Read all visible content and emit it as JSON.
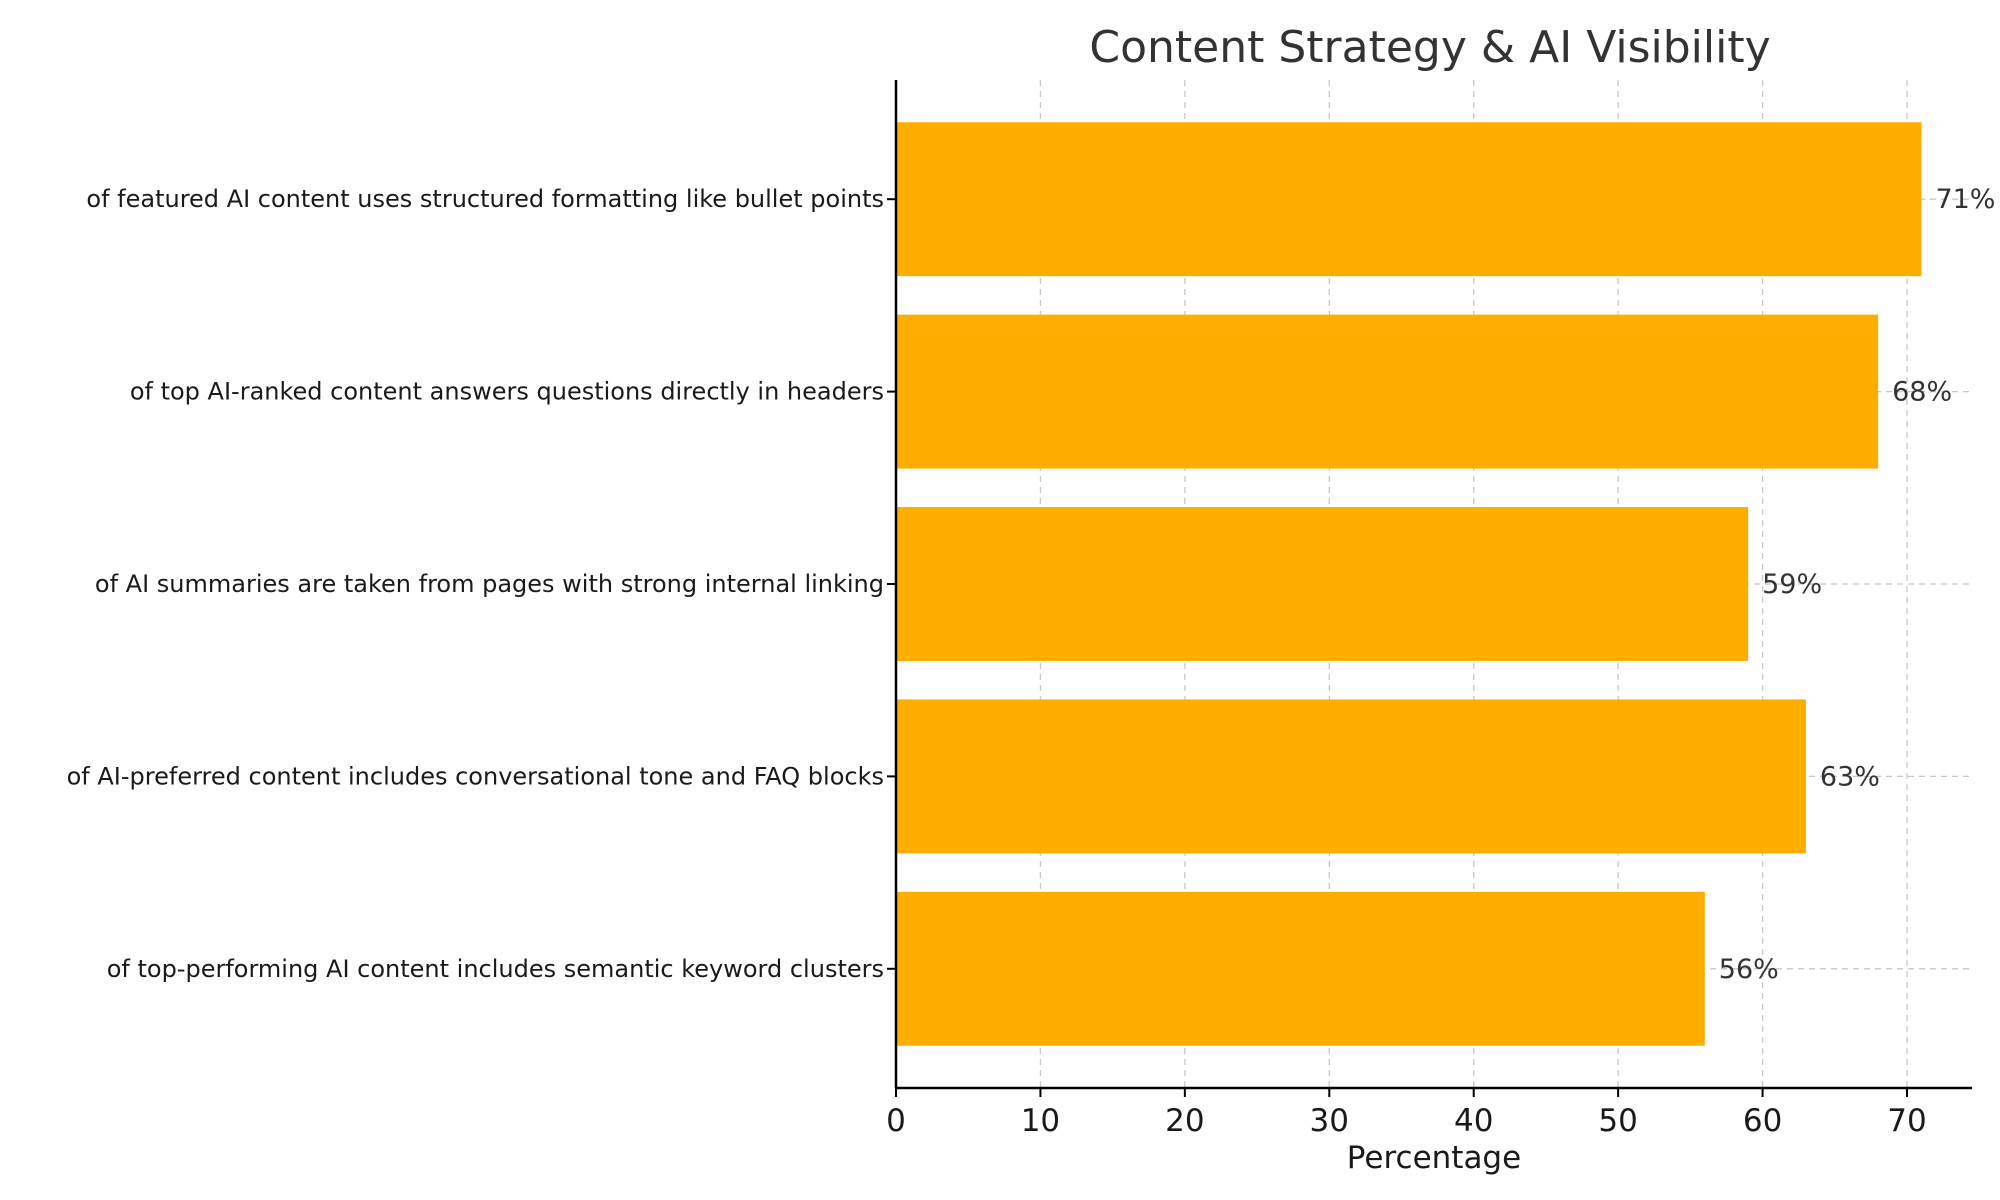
{
  "chart_data": {
    "type": "bar",
    "orientation": "horizontal",
    "title": "Content Strategy & AI Visibility",
    "xlabel": "Percentage",
    "ylabel": "",
    "xlim": [
      0,
      74.5
    ],
    "xticks": [
      0,
      10,
      20,
      30,
      40,
      50,
      60,
      70
    ],
    "grid": true,
    "bar_color": "#FFAE00",
    "categories": [
      "of featured AI content uses structured formatting like bullet points",
      "of top AI-ranked content answers questions directly in headers",
      "of AI summaries are taken from pages with strong internal linking",
      "of AI-preferred content includes conversational tone and FAQ blocks",
      "of top-performing AI content includes semantic keyword clusters"
    ],
    "values": [
      71,
      68,
      59,
      63,
      56
    ],
    "data_labels": [
      "71%",
      "68%",
      "59%",
      "63%",
      "56%"
    ]
  }
}
